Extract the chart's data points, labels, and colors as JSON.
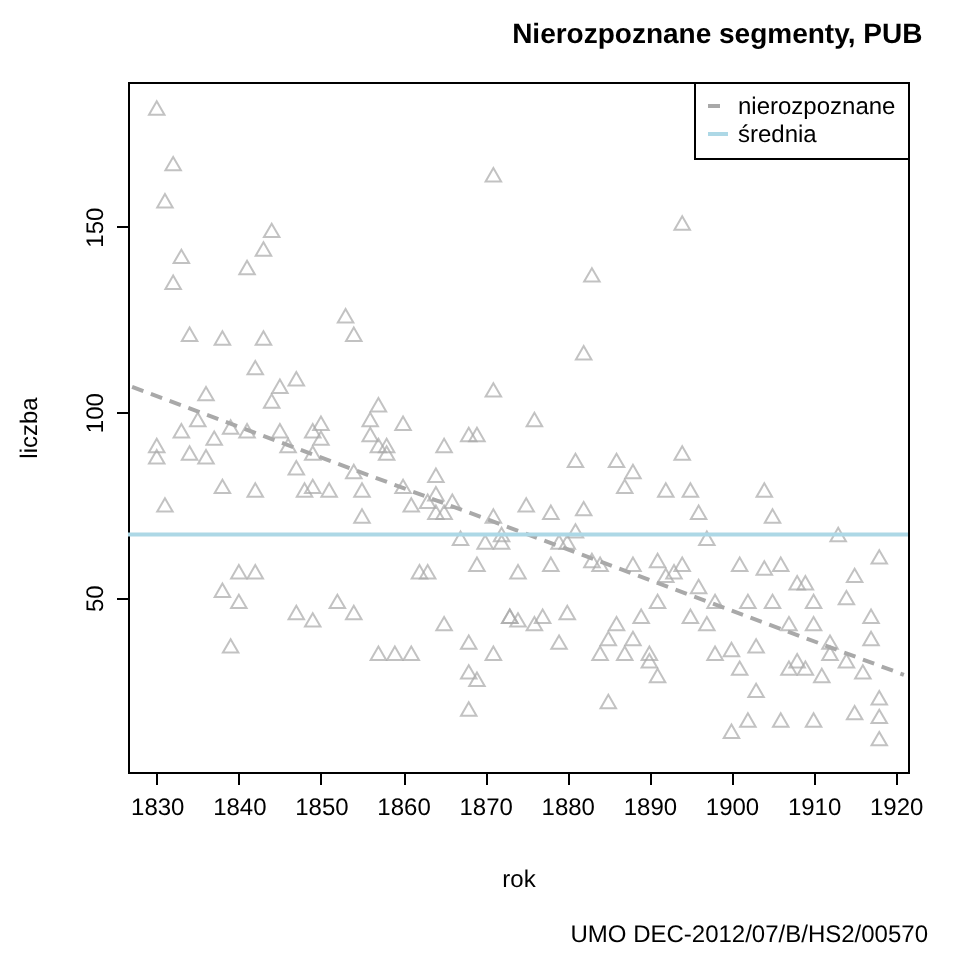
{
  "chart_data": {
    "type": "scatter",
    "title": "Nierozpoznane segmenty, PUB",
    "xlabel": "rok",
    "ylabel": "liczba",
    "annotations": [
      "UMO DEC-2012/07/B/HS2/00570"
    ],
    "xlim": [
      1826.5,
      1921.5
    ],
    "ylim": [
      3,
      189
    ],
    "xticks": [
      1830,
      1840,
      1850,
      1860,
      1870,
      1880,
      1890,
      1900,
      1910,
      1920
    ],
    "yticks": [
      50,
      100,
      150
    ],
    "grid": false,
    "legend": "top right",
    "series": [
      {
        "color": "#a9a9a9",
        "marker": "triangle",
        "x": [
          1830,
          1830,
          1830,
          1831,
          1831,
          1832,
          1832,
          1833,
          1833,
          1834,
          1834,
          1835,
          1836,
          1836,
          1837,
          1838,
          1838,
          1838,
          1839,
          1839,
          1840,
          1840,
          1841,
          1841,
          1842,
          1842,
          1842,
          1843,
          1843,
          1844,
          1844,
          1845,
          1845,
          1846,
          1847,
          1847,
          1847,
          1848,
          1849,
          1849,
          1849,
          1849,
          1850,
          1850,
          1851,
          1852,
          1853,
          1854,
          1854,
          1854,
          1855,
          1855,
          1856,
          1856,
          1857,
          1857,
          1857,
          1858,
          1858,
          1859,
          1860,
          1860,
          1861,
          1861,
          1862,
          1863,
          1863,
          1864,
          1864,
          1864,
          1865,
          1865,
          1865,
          1866,
          1867,
          1868,
          1868,
          1868,
          1868,
          1869,
          1869,
          1869,
          1870,
          1871,
          1871,
          1871,
          1871,
          1872,
          1872,
          1873,
          1873,
          1874,
          1874,
          1875,
          1876,
          1876,
          1877,
          1878,
          1878,
          1879,
          1879,
          1880,
          1880,
          1881,
          1881,
          1882,
          1882,
          1883,
          1883,
          1884,
          1884,
          1885,
          1885,
          1886,
          1886,
          1887,
          1887,
          1888,
          1888,
          1888,
          1889,
          1890,
          1890,
          1891,
          1891,
          1891,
          1892,
          1892,
          1893,
          1894,
          1894,
          1894,
          1895,
          1895,
          1896,
          1896,
          1897,
          1897,
          1898,
          1898,
          1900,
          1900,
          1901,
          1901,
          1902,
          1902,
          1903,
          1903,
          1904,
          1904,
          1905,
          1905,
          1906,
          1906,
          1907,
          1907,
          1908,
          1908,
          1909,
          1909,
          1910,
          1910,
          1910,
          1911,
          1912,
          1912,
          1913,
          1914,
          1914,
          1915,
          1915,
          1916,
          1917,
          1917,
          1918,
          1918,
          1918,
          1918
        ],
        "values": [
          182,
          91,
          88,
          75,
          157,
          167,
          135,
          142,
          95,
          121,
          89,
          98,
          105,
          88,
          93,
          52,
          120,
          80,
          37,
          96,
          49,
          57,
          95,
          139,
          57,
          112,
          79,
          120,
          144,
          149,
          103,
          107,
          95,
          91,
          109,
          85,
          46,
          79,
          95,
          89,
          80,
          44,
          97,
          93,
          79,
          49,
          126,
          121,
          84,
          46,
          79,
          72,
          94,
          98,
          102,
          35,
          91,
          91,
          89,
          35,
          97,
          80,
          35,
          75,
          57,
          57,
          76,
          83,
          78,
          73,
          73,
          91,
          43,
          76,
          66,
          38,
          30,
          94,
          20,
          94,
          59,
          28,
          65,
          35,
          106,
          164,
          72,
          67,
          65,
          45,
          45,
          57,
          44,
          75,
          98,
          43,
          45,
          73,
          59,
          65,
          38,
          46,
          65,
          87,
          68,
          116,
          74,
          137,
          60,
          59,
          35,
          22,
          39,
          43,
          87,
          80,
          35,
          59,
          39,
          84,
          45,
          35,
          33,
          29,
          60,
          49,
          56,
          79,
          57,
          89,
          151,
          59,
          45,
          79,
          53,
          73,
          43,
          66,
          35,
          49,
          36,
          14,
          59,
          31,
          49,
          17,
          25,
          37,
          79,
          58,
          72,
          49,
          59,
          17,
          43,
          31,
          54,
          33,
          54,
          31,
          49,
          17,
          43,
          29,
          38,
          35,
          67,
          50,
          33,
          56,
          19,
          30,
          45,
          39,
          61,
          23,
          18,
          12
        ]
      },
      {
        "type": "line",
        "name": "nierozpoznane",
        "color": "#a9a9a9",
        "line_style": "dashed",
        "marker": "none",
        "x": [
          1827,
          1921
        ],
        "values": [
          106.8,
          29.2
        ]
      },
      {
        "type": "line",
        "name": "średnia",
        "color": "#add8e6",
        "line_style": "solid",
        "marker": "none",
        "x": [
          1826.5,
          1921.5
        ],
        "values": [
          67,
          67
        ]
      }
    ]
  }
}
